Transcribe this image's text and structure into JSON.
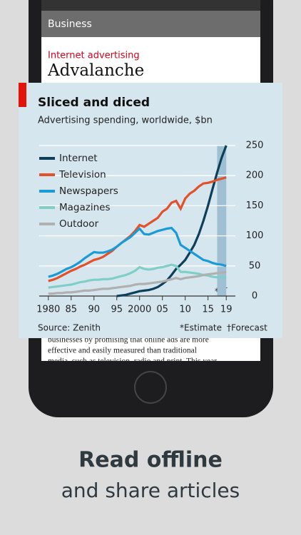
{
  "screen": {
    "section": "Business",
    "kicker": "Internet advertising",
    "headline": "Advalanche",
    "article_lines": [
      "businesses by promising that online ads are more",
      "effective and easily measured than traditional",
      "media, such as television, radio and print. This year"
    ]
  },
  "caption": {
    "line1": "Read offline",
    "line2": "and share articles"
  },
  "chart_data": {
    "type": "line",
    "title": "Sliced and diced",
    "subtitle": "Advertising spending, worldwide, $bn",
    "source": "Source: Zenith",
    "notes": [
      "*Estimate",
      "†Forecast"
    ],
    "markers": [
      "*",
      "†"
    ],
    "x": [
      1980,
      1981,
      1982,
      1983,
      1984,
      1985,
      1986,
      1987,
      1988,
      1989,
      1990,
      1991,
      1992,
      1993,
      1994,
      1995,
      1996,
      1997,
      1998,
      1999,
      2000,
      2001,
      2002,
      2003,
      2004,
      2005,
      2006,
      2007,
      2008,
      2009,
      2010,
      2011,
      2012,
      2013,
      2014,
      2015,
      2016,
      2017,
      2018,
      2019
    ],
    "series": [
      {
        "name": "Internet",
        "color": "#0e3f5a",
        "values": [
          null,
          null,
          null,
          null,
          null,
          null,
          null,
          null,
          null,
          null,
          null,
          null,
          null,
          null,
          null,
          0,
          1,
          2,
          4,
          6,
          8,
          9,
          10,
          12,
          15,
          20,
          26,
          35,
          45,
          52,
          60,
          72,
          85,
          103,
          125,
          150,
          178,
          205,
          230,
          250
        ]
      },
      {
        "name": "Television",
        "color": "#e3512b",
        "values": [
          25,
          27,
          30,
          34,
          38,
          42,
          45,
          49,
          52,
          56,
          60,
          62,
          65,
          70,
          75,
          82,
          88,
          94,
          100,
          108,
          118,
          115,
          120,
          125,
          130,
          140,
          145,
          155,
          158,
          145,
          162,
          170,
          175,
          182,
          187,
          188,
          190,
          193,
          195,
          197
        ]
      },
      {
        "name": "Newspapers",
        "color": "#1a9ad6",
        "values": [
          32,
          34,
          37,
          41,
          45,
          48,
          52,
          57,
          63,
          68,
          73,
          72,
          72,
          74,
          77,
          82,
          88,
          93,
          98,
          105,
          112,
          103,
          102,
          105,
          108,
          110,
          112,
          113,
          105,
          85,
          80,
          75,
          70,
          65,
          60,
          58,
          55,
          53,
          52,
          50
        ]
      },
      {
        "name": "Magazines",
        "color": "#7fcfc9",
        "values": [
          14,
          15,
          16,
          17,
          18,
          19,
          21,
          23,
          24,
          26,
          27,
          27,
          28,
          28,
          29,
          31,
          33,
          35,
          38,
          42,
          48,
          45,
          44,
          45,
          47,
          48,
          50,
          52,
          50,
          40,
          40,
          39,
          38,
          37,
          35,
          34,
          32,
          31,
          31,
          30
        ]
      },
      {
        "name": "Outdoor",
        "color": "#b0b0b0",
        "values": [
          4,
          4,
          5,
          5,
          6,
          6,
          7,
          8,
          9,
          9,
          10,
          11,
          12,
          12,
          13,
          14,
          15,
          16,
          17,
          19,
          20,
          20,
          21,
          22,
          23,
          24,
          26,
          28,
          30,
          28,
          30,
          31,
          32,
          33,
          35,
          36,
          37,
          38,
          39,
          40
        ]
      }
    ],
    "xlim": [
      1978,
      2021
    ],
    "ylim": [
      0,
      250
    ],
    "xticks": [
      {
        "value": 1980,
        "label": "1980"
      },
      {
        "value": 1985,
        "label": "85"
      },
      {
        "value": 1990,
        "label": "90"
      },
      {
        "value": 1995,
        "label": "95"
      },
      2000,
      {
        "value": 2005,
        "label": "05"
      },
      {
        "value": 2010,
        "label": "10"
      },
      {
        "value": 2015,
        "label": "15"
      },
      {
        "value": 2019,
        "label": "19"
      }
    ],
    "yticks": [
      0,
      50,
      100,
      150,
      200,
      250
    ],
    "shaded_x": [
      2017,
      2019
    ],
    "grid": true
  }
}
